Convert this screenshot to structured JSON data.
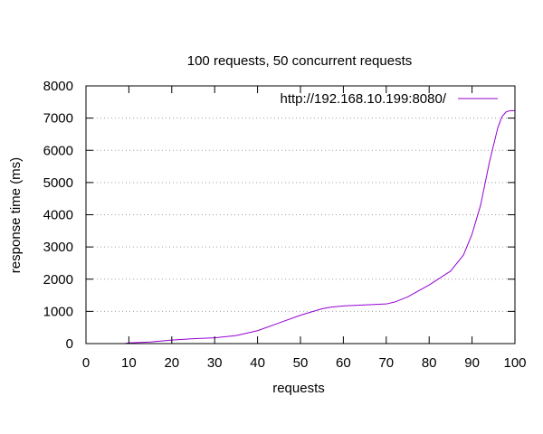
{
  "chart_data": {
    "type": "line",
    "title": "100 requests, 50 concurrent requests",
    "xlabel": "requests",
    "ylabel": "response time (ms)",
    "xlim": [
      0,
      100
    ],
    "ylim": [
      0,
      8000
    ],
    "xticks": [
      0,
      10,
      20,
      30,
      40,
      50,
      60,
      70,
      80,
      90,
      100
    ],
    "yticks": [
      0,
      1000,
      2000,
      3000,
      4000,
      5000,
      6000,
      7000,
      8000
    ],
    "grid": "horizontal-dotted",
    "legend_position": "top-right",
    "series": [
      {
        "name": "http://192.168.10.199:8080/",
        "color": "#9400d3",
        "x": [
          9,
          10,
          15,
          20,
          25,
          30,
          35,
          40,
          45,
          50,
          55,
          57,
          60,
          65,
          70,
          72,
          75,
          80,
          85,
          88,
          90,
          92,
          94,
          96,
          97,
          98,
          99,
          100
        ],
        "y": [
          0,
          20,
          50,
          110,
          150,
          180,
          250,
          400,
          640,
          880,
          1080,
          1130,
          1170,
          1200,
          1230,
          1290,
          1450,
          1820,
          2250,
          2750,
          3400,
          4300,
          5600,
          6700,
          7050,
          7200,
          7230,
          7230
        ]
      }
    ]
  }
}
